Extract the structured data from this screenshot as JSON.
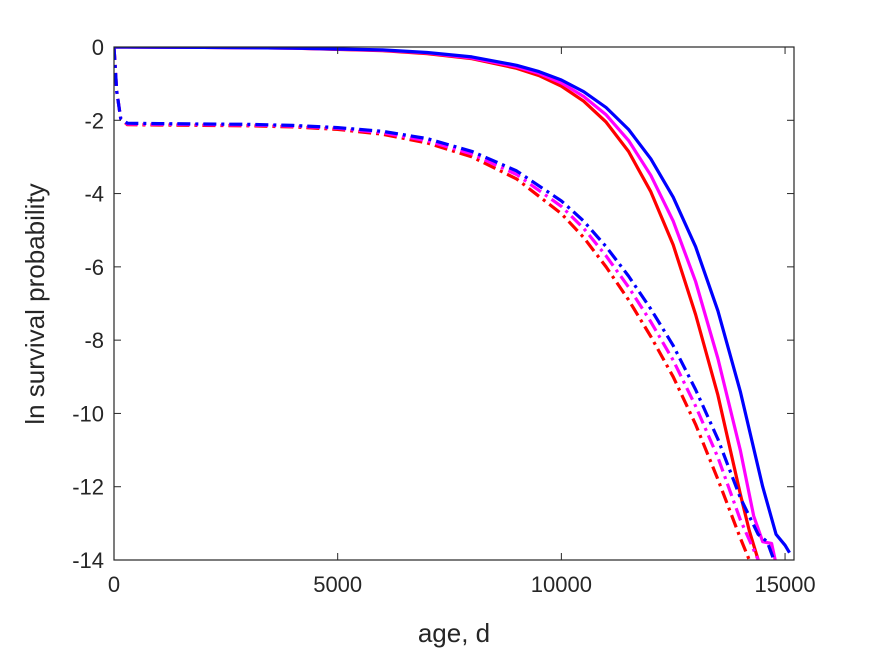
{
  "chart_data": {
    "type": "line",
    "title": "",
    "xlabel": "age, d",
    "ylabel": "ln survival probability",
    "xlim": [
      0,
      15200
    ],
    "ylim": [
      -14,
      0
    ],
    "xticks": [
      0,
      5000,
      10000,
      15000
    ],
    "xtick_labels": [
      "0",
      "5000",
      "10000",
      "15000"
    ],
    "yticks": [
      0,
      -2,
      -4,
      -6,
      -8,
      -10,
      -12,
      -14
    ],
    "ytick_labels": [
      "0",
      "-2",
      "-4",
      "-6",
      "-8",
      "-10",
      "-12",
      "-14"
    ],
    "grid": false,
    "legend": "none",
    "series": [
      {
        "color": "#ff0000",
        "style": "solid",
        "x": [
          0,
          2000,
          4000,
          6000,
          7000,
          8000,
          9000,
          9500,
          10000,
          10500,
          11000,
          11500,
          12000,
          12500,
          13000,
          13500,
          14000,
          14200,
          14400
        ],
        "y": [
          0,
          -0.01,
          -0.03,
          -0.1,
          -0.18,
          -0.32,
          -0.58,
          -0.78,
          -1.07,
          -1.48,
          -2.05,
          -2.85,
          -3.95,
          -5.4,
          -7.3,
          -9.5,
          -12.2,
          -13.2,
          -14
        ]
      },
      {
        "color": "#ff00ff",
        "style": "solid",
        "x": [
          0,
          2000,
          4000,
          6000,
          7000,
          8000,
          9000,
          9500,
          10000,
          10500,
          11000,
          11500,
          12000,
          12500,
          13000,
          13500,
          14000,
          14300,
          14500,
          14700,
          14780
        ],
        "y": [
          0,
          -0.01,
          -0.03,
          -0.09,
          -0.16,
          -0.3,
          -0.54,
          -0.72,
          -0.98,
          -1.35,
          -1.85,
          -2.55,
          -3.5,
          -4.75,
          -6.4,
          -8.5,
          -11.0,
          -12.8,
          -13.5,
          -13.55,
          -14
        ]
      },
      {
        "color": "#0000ff",
        "style": "solid",
        "x": [
          0,
          2000,
          4000,
          6000,
          7000,
          8000,
          9000,
          9500,
          10000,
          10500,
          11000,
          11500,
          12000,
          12500,
          13000,
          13500,
          14000,
          14500,
          14800,
          15000,
          15100
        ],
        "y": [
          0,
          -0.01,
          -0.03,
          -0.08,
          -0.15,
          -0.27,
          -0.5,
          -0.67,
          -0.9,
          -1.22,
          -1.65,
          -2.25,
          -3.05,
          -4.1,
          -5.45,
          -7.2,
          -9.4,
          -12.0,
          -13.3,
          -13.6,
          -13.8
        ]
      },
      {
        "color": "#ff0000",
        "style": "dashdot",
        "x": [
          0,
          60,
          150,
          300,
          1000,
          2000,
          3000,
          4000,
          5000,
          6000,
          7000,
          8000,
          9000,
          10000,
          10500,
          11000,
          11500,
          12000,
          12500,
          13000,
          13500,
          14000,
          14200
        ],
        "y": [
          0,
          -1.2,
          -1.95,
          -2.12,
          -2.13,
          -2.14,
          -2.15,
          -2.18,
          -2.25,
          -2.38,
          -2.62,
          -3.0,
          -3.6,
          -4.55,
          -5.2,
          -6.0,
          -6.9,
          -7.9,
          -9.0,
          -10.3,
          -11.8,
          -13.4,
          -14
        ]
      },
      {
        "color": "#ff00ff",
        "style": "dashdot",
        "x": [
          0,
          60,
          150,
          300,
          1000,
          2000,
          3000,
          4000,
          5000,
          6000,
          7000,
          8000,
          9000,
          10000,
          10500,
          11000,
          11500,
          12000,
          12500,
          13000,
          13500,
          14000,
          14400
        ],
        "y": [
          0,
          -1.2,
          -1.95,
          -2.1,
          -2.11,
          -2.12,
          -2.13,
          -2.16,
          -2.22,
          -2.34,
          -2.56,
          -2.92,
          -3.48,
          -4.35,
          -4.95,
          -5.7,
          -6.55,
          -7.5,
          -8.55,
          -9.8,
          -11.2,
          -12.9,
          -14
        ]
      },
      {
        "color": "#0000ff",
        "style": "dashdot",
        "x": [
          0,
          60,
          150,
          300,
          1000,
          2000,
          3000,
          4000,
          5000,
          6000,
          7000,
          8000,
          9000,
          10000,
          10500,
          11000,
          11500,
          12000,
          12500,
          13000,
          13500,
          14000,
          14400,
          14600,
          14750
        ],
        "y": [
          0,
          -1.2,
          -1.95,
          -2.08,
          -2.09,
          -2.1,
          -2.11,
          -2.14,
          -2.2,
          -2.3,
          -2.5,
          -2.85,
          -3.38,
          -4.2,
          -4.75,
          -5.45,
          -6.25,
          -7.15,
          -8.15,
          -9.35,
          -10.7,
          -12.3,
          -13.3,
          -13.5,
          -14
        ]
      }
    ]
  }
}
